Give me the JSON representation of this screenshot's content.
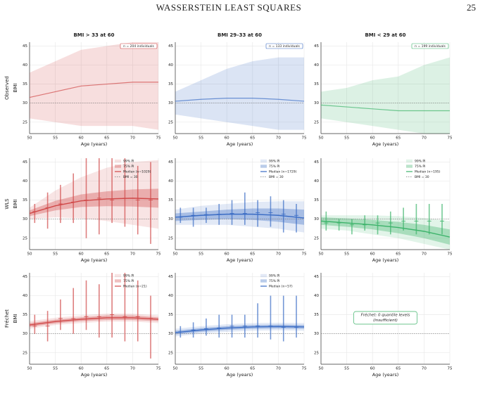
{
  "header": {
    "title": "WASSERSTEIN LEAST SQUARES",
    "page": "25"
  },
  "figure": {
    "xlim": [
      50,
      75
    ],
    "ylim": [
      22,
      46
    ],
    "xticks": [
      50,
      55,
      60,
      65,
      70,
      75
    ],
    "yticks": [
      25,
      30,
      35,
      40,
      45
    ],
    "x_label": "Age (years)",
    "y_label": "BMI",
    "reference": 30,
    "titles": [
      "BMI > 33 at 60",
      "BMI 29–33 at 60",
      "BMI < 29 at 60"
    ],
    "colors": [
      "#d04848",
      "#3a6cc4",
      "#3cb36a"
    ],
    "rows": [
      {
        "label": "Observed",
        "panels": [
          {
            "type": "observed",
            "badge": "n = 204 individuals",
            "x": [
              50,
              55,
              60,
              65,
              70,
              75
            ],
            "low": [
              26,
              25,
              24,
              24,
              24,
              23
            ],
            "high": [
              38,
              41,
              44,
              45,
              46,
              46
            ],
            "center": [
              31.5,
              33,
              34.5,
              35,
              35.5,
              35.5
            ]
          },
          {
            "type": "observed",
            "badge": "n = 133 individuals",
            "x": [
              50,
              55,
              60,
              65,
              70,
              75
            ],
            "low": [
              27,
              26,
              25,
              24,
              23,
              23
            ],
            "high": [
              33,
              36,
              39,
              41,
              42,
              42
            ],
            "center": [
              30.5,
              31,
              31.3,
              31.3,
              31,
              30.5
            ]
          },
          {
            "type": "observed",
            "badge": "n = 199 individuals",
            "x": [
              50,
              55,
              60,
              65,
              70,
              75
            ],
            "low": [
              26,
              25,
              24,
              23,
              22,
              22
            ],
            "high": [
              33,
              34,
              36,
              37,
              40,
              42
            ],
            "center": [
              29.5,
              29,
              28.5,
              28,
              28,
              28
            ]
          }
        ]
      },
      {
        "label": "WLS",
        "panels": [
          {
            "type": "model",
            "legend": [
              "99% PI",
              "75% PI",
              "Median  (n=1029)",
              "BMI = 30"
            ],
            "x": [
              50,
              55,
              60,
              65,
              70,
              75
            ],
            "median": [
              31.5,
              33.5,
              34.8,
              35.3,
              35.5,
              35.3
            ],
            "lo75": [
              30.8,
              32.3,
              33.2,
              33.4,
              33.3,
              33
            ],
            "hi75": [
              32.3,
              34.8,
              36.5,
              37.3,
              37.8,
              38
            ],
            "lo99": [
              30,
              30.5,
              30.2,
              29.5,
              28.5,
              27.5
            ],
            "hi99": [
              33,
              37.5,
              41,
              43.5,
              45,
              45.5
            ],
            "box_x": [
              51,
              53.5,
              56,
              58.5,
              61,
              63.5,
              66,
              68.5,
              71,
              73.5
            ],
            "box_lo": [
              29,
              27.5,
              29,
              29,
              25,
              26,
              29,
              28,
              26,
              23.5
            ],
            "box_hi": [
              34,
              37,
              39,
              42,
              46,
              46,
              46,
              46,
              44,
              45
            ],
            "box_mid": [
              32,
              33,
              34,
              34.5,
              35,
              35.5,
              35,
              35.5,
              35,
              35
            ]
          },
          {
            "type": "model",
            "legend": [
              "99% PI",
              "75% PI",
              "Median  (n=1729)",
              "BMI = 30"
            ],
            "x": [
              50,
              55,
              60,
              65,
              70,
              75
            ],
            "median": [
              30.5,
              31,
              31.3,
              31.3,
              31,
              30.3
            ],
            "lo75": [
              29.5,
              29.8,
              30,
              29.8,
              29.3,
              28.5
            ],
            "hi75": [
              31.5,
              32,
              32.5,
              32.8,
              32.8,
              32.5
            ],
            "lo99": [
              28.5,
              28.5,
              28.5,
              28,
              27.5,
              26.5
            ],
            "hi99": [
              32.5,
              33.5,
              34,
              34.5,
              34.7,
              34.7
            ],
            "box_x": [
              51,
              53.5,
              56,
              58.5,
              61,
              63.5,
              66,
              68.5,
              71,
              73.5
            ],
            "box_lo": [
              29,
              28,
              29,
              28.5,
              28.5,
              28.5,
              28,
              28,
              26.5,
              26.5
            ],
            "box_hi": [
              33,
              33,
              33,
              34,
              35,
              37,
              35,
              36,
              35,
              34
            ],
            "box_mid": [
              30.5,
              31,
              31.2,
              31.3,
              31.5,
              31.5,
              31.7,
              31.7,
              31.3,
              31
            ]
          },
          {
            "type": "model",
            "legend": [
              "99% PI",
              "75% PI",
              "Median  (n=195)",
              "BMI = 30"
            ],
            "x": [
              50,
              55,
              60,
              65,
              70,
              75
            ],
            "median": [
              29.5,
              29,
              28.5,
              27.8,
              26.8,
              25.3
            ],
            "lo75": [
              28.5,
              28,
              27.3,
              26.3,
              25,
              23.3
            ],
            "hi75": [
              30.5,
              30.2,
              29.8,
              29.3,
              28.5,
              27.3
            ],
            "lo99": [
              27.5,
              27,
              26,
              25,
              23.5,
              22
            ],
            "hi99": [
              31,
              31,
              31,
              30.8,
              30.3,
              29.5
            ],
            "box_x": [
              51,
              53.5,
              56,
              58.5,
              61,
              63.5,
              66,
              68.5,
              71,
              73.5
            ],
            "box_lo": [
              27,
              27,
              26,
              27,
              26,
              26,
              27,
              26,
              26,
              26
            ],
            "box_hi": [
              32,
              30,
              30,
              31,
              31,
              32,
              33,
              34,
              34,
              34
            ],
            "box_mid": [
              29,
              29,
              28.5,
              28.5,
              29,
              29,
              29.5,
              29.5,
              29.5,
              29.5
            ]
          }
        ]
      },
      {
        "label": "Fréchet",
        "panels": [
          {
            "type": "model",
            "legend": [
              "99% PI",
              "75% PI",
              "Median  (n=21)"
            ],
            "x": [
              50,
              55,
              60,
              65,
              70,
              75
            ],
            "median": [
              32.3,
              33.2,
              33.8,
              34.2,
              34.2,
              33.8
            ],
            "lo75": [
              31.8,
              32.7,
              33.3,
              33.6,
              33.6,
              33.3
            ],
            "hi75": [
              32.8,
              33.7,
              34.3,
              34.8,
              34.8,
              34.3
            ],
            "lo99": [
              31.3,
              32.3,
              32.8,
              33.2,
              33.2,
              32.8
            ],
            "hi99": [
              33.3,
              34.2,
              34.8,
              35.3,
              35.3,
              34.8
            ],
            "box_x": [
              51,
              53.5,
              56,
              58.5,
              61,
              63.5,
              66,
              68.5,
              71,
              73.5
            ],
            "box_lo": [
              30,
              28,
              31,
              30,
              31,
              29,
              29,
              28,
              28,
              23.5
            ],
            "box_hi": [
              35,
              36,
              39,
              42,
              44,
              43,
              46,
              46,
              44,
              40
            ],
            "box_mid": [
              32,
              32,
              34,
              34,
              34.5,
              34.5,
              35,
              34.5,
              34.5,
              34
            ]
          },
          {
            "type": "model",
            "legend": [
              "99% PI",
              "75% PI",
              "Median  (n=57)"
            ],
            "x": [
              50,
              55,
              60,
              65,
              70,
              75
            ],
            "median": [
              30.3,
              31,
              31.5,
              31.8,
              31.9,
              31.8
            ],
            "lo75": [
              29.8,
              30.5,
              31,
              31.3,
              31.4,
              31.3
            ],
            "hi75": [
              30.8,
              31.5,
              32,
              32.3,
              32.4,
              32.3
            ],
            "lo99": [
              29.3,
              30,
              30.5,
              30.8,
              30.9,
              30.8
            ],
            "hi99": [
              31.3,
              32,
              32.5,
              32.8,
              32.9,
              32.8
            ],
            "box_x": [
              51,
              53.5,
              56,
              58.5,
              61,
              63.5,
              66,
              68.5,
              71,
              73.5
            ],
            "box_lo": [
              29,
              29,
              29.5,
              29,
              29,
              29,
              29,
              28.5,
              28,
              29
            ],
            "box_hi": [
              32,
              33,
              34,
              35,
              35,
              35,
              38,
              40,
              40,
              40
            ],
            "box_mid": [
              30.5,
              31,
              31.3,
              31.5,
              32,
              32,
              32,
              32,
              31.7,
              31.7
            ]
          },
          {
            "type": "empty",
            "note": [
              "Fréchet: 0 quantile levels",
              "(insufficient)"
            ]
          }
        ]
      }
    ]
  }
}
